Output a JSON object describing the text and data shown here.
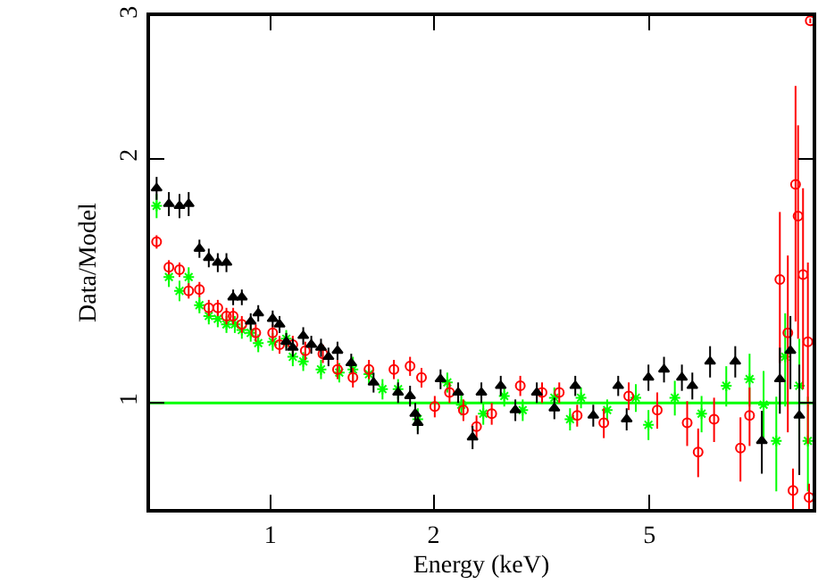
{
  "chart_data": {
    "type": "scatter",
    "xlabel": "Energy (keV)",
    "ylabel": "Data/Model",
    "log": "xy",
    "xlim": [
      0.6,
      10
    ],
    "xticks": [
      1,
      2,
      5
    ],
    "ylim": [
      0.74,
      3
    ],
    "yticks": [
      1,
      2,
      3
    ],
    "grid": false,
    "ref_lines": [
      {
        "axis": "y",
        "value": 1,
        "color": "#00ff00",
        "line_style": "solid"
      }
    ],
    "series": [
      {
        "color": "#000000",
        "marker": "triangle",
        "x": [
          0.617,
          0.65,
          0.68,
          0.707,
          0.74,
          0.77,
          0.8,
          0.83,
          0.854,
          0.886,
          0.92,
          0.95,
          1.01,
          1.04,
          1.07,
          1.1,
          1.15,
          1.19,
          1.24,
          1.28,
          1.33,
          1.41,
          1.55,
          1.72,
          1.81,
          1.85,
          1.87,
          2.06,
          2.22,
          2.36,
          2.45,
          2.66,
          2.83,
          3.1,
          3.34,
          3.65,
          3.94,
          4.38,
          4.54,
          4.98,
          5.32,
          5.74,
          6.0,
          6.47,
          7.2,
          8.06,
          8.7,
          9.1,
          9.45
        ],
        "values": [
          1.84,
          1.76,
          1.75,
          1.76,
          1.55,
          1.51,
          1.49,
          1.49,
          1.35,
          1.35,
          1.26,
          1.29,
          1.27,
          1.25,
          1.19,
          1.17,
          1.21,
          1.18,
          1.17,
          1.14,
          1.16,
          1.12,
          1.06,
          1.03,
          1.02,
          0.97,
          0.945,
          1.07,
          1.03,
          0.907,
          1.03,
          1.05,
          0.98,
          1.03,
          0.985,
          1.05,
          0.965,
          1.05,
          0.955,
          1.075,
          1.1,
          1.075,
          1.05,
          1.125,
          1.125,
          0.898,
          1.07,
          1.16,
          0.965
        ],
        "errors": [
          0.06,
          0.06,
          0.06,
          0.06,
          0.04,
          0.04,
          0.04,
          0.04,
          0.03,
          0.03,
          0.03,
          0.03,
          0.03,
          0.03,
          0.03,
          0.03,
          0.03,
          0.03,
          0.03,
          0.03,
          0.03,
          0.03,
          0.03,
          0.03,
          0.03,
          0.03,
          0.03,
          0.03,
          0.03,
          0.03,
          0.03,
          0.03,
          0.03,
          0.03,
          0.03,
          0.03,
          0.03,
          0.03,
          0.03,
          0.04,
          0.04,
          0.04,
          0.04,
          0.05,
          0.05,
          0.08,
          0.1,
          0.12,
          0.15
        ]
      },
      {
        "color": "#ff0000",
        "marker": "circle",
        "x": [
          0.617,
          0.65,
          0.68,
          0.707,
          0.74,
          0.77,
          0.8,
          0.83,
          0.854,
          0.886,
          0.94,
          1.01,
          1.04,
          1.1,
          1.16,
          1.25,
          1.33,
          1.42,
          1.52,
          1.69,
          1.81,
          1.9,
          2.01,
          2.14,
          2.27,
          2.4,
          2.56,
          2.89,
          3.17,
          3.41,
          3.68,
          4.12,
          4.58,
          5.17,
          5.87,
          6.15,
          6.58,
          7.36,
          7.65,
          8.7,
          9.0,
          9.2,
          9.3,
          9.4,
          9.6,
          9.8,
          9.85,
          9.9
        ],
        "values": [
          1.58,
          1.47,
          1.46,
          1.375,
          1.38,
          1.31,
          1.31,
          1.28,
          1.28,
          1.25,
          1.22,
          1.22,
          1.18,
          1.18,
          1.16,
          1.15,
          1.1,
          1.075,
          1.1,
          1.1,
          1.11,
          1.075,
          0.99,
          1.03,
          0.98,
          0.935,
          0.97,
          1.05,
          1.03,
          1.03,
          0.965,
          0.945,
          1.02,
          0.98,
          0.945,
          0.87,
          0.955,
          0.88,
          0.965,
          1.42,
          1.22,
          0.78,
          1.86,
          1.7,
          1.44,
          1.19,
          0.765,
          2.96
        ],
        "errors": [
          0.03,
          0.03,
          0.03,
          0.03,
          0.03,
          0.03,
          0.03,
          0.03,
          0.03,
          0.03,
          0.03,
          0.03,
          0.03,
          0.03,
          0.03,
          0.03,
          0.03,
          0.03,
          0.03,
          0.03,
          0.03,
          0.03,
          0.03,
          0.03,
          0.03,
          0.03,
          0.03,
          0.03,
          0.03,
          0.03,
          0.03,
          0.04,
          0.04,
          0.05,
          0.06,
          0.06,
          0.06,
          0.08,
          0.08,
          0.3,
          0.3,
          0.05,
          0.6,
          0.5,
          0.4,
          0.3,
          0.03,
          0.02
        ]
      },
      {
        "color": "#00ff00",
        "marker": "cross",
        "x": [
          0.617,
          0.65,
          0.68,
          0.707,
          0.74,
          0.77,
          0.8,
          0.83,
          0.86,
          0.886,
          0.92,
          0.95,
          1.01,
          1.07,
          1.1,
          1.15,
          1.24,
          1.34,
          1.42,
          1.52,
          1.61,
          1.72,
          1.87,
          2.12,
          2.25,
          2.47,
          2.7,
          2.92,
          3.34,
          3.57,
          3.74,
          4.18,
          4.72,
          4.98,
          5.57,
          6.24,
          6.93,
          7.65,
          8.12,
          8.57,
          8.9,
          9.45,
          9.8
        ],
        "values": [
          1.75,
          1.43,
          1.375,
          1.43,
          1.32,
          1.28,
          1.27,
          1.25,
          1.25,
          1.23,
          1.22,
          1.185,
          1.19,
          1.2,
          1.14,
          1.125,
          1.1,
          1.09,
          1.1,
          1.085,
          1.04,
          1.04,
          0.955,
          1.06,
          0.995,
          0.97,
          1.02,
          0.98,
          1.015,
          0.955,
          1.015,
          0.98,
          1.015,
          0.94,
          1.015,
          0.97,
          1.05,
          1.07,
          0.995,
          0.898,
          1.14,
          1.05,
          0.898
        ],
        "errors": [
          0.06,
          0.04,
          0.04,
          0.04,
          0.03,
          0.03,
          0.03,
          0.03,
          0.03,
          0.03,
          0.03,
          0.03,
          0.03,
          0.03,
          0.03,
          0.03,
          0.03,
          0.03,
          0.04,
          0.03,
          0.03,
          0.03,
          0.03,
          0.03,
          0.03,
          0.03,
          0.03,
          0.03,
          0.03,
          0.03,
          0.03,
          0.03,
          0.04,
          0.04,
          0.05,
          0.05,
          0.06,
          0.08,
          0.1,
          0.12,
          0.15,
          0.15,
          0.12
        ]
      }
    ]
  }
}
